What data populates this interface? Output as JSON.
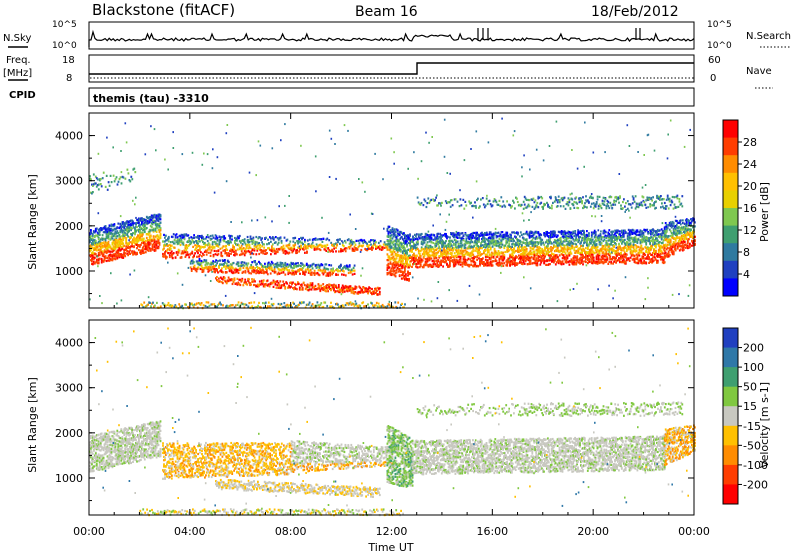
{
  "header": {
    "station": "Blackstone (fitACF)",
    "beam": "Beam 16",
    "date": "18/Feb/2012"
  },
  "top_panels": {
    "nsky_label": "N.Sky",
    "nsky_ticks": [
      "10^5",
      "10^0"
    ],
    "nsearch_label": "N.Search",
    "nsearch_ticks": [
      "10^5",
      "10^0"
    ],
    "freq_label": "Freq.",
    "freq_unit": "[MHz]",
    "freq_ticks": [
      "18",
      "8"
    ],
    "nave_label": "Nave",
    "nave_ticks": [
      "60",
      "0"
    ],
    "cpid_label": "CPID",
    "cpid_text": "themis (tau) -3310"
  },
  "chart_data": [
    {
      "type": "heatmap",
      "name": "power-panel",
      "ylabel": "Slant Range [km]",
      "yticks": [
        "4000",
        "3000",
        "2000",
        "1000"
      ],
      "ylim": [
        180,
        4500
      ],
      "xlim": [
        0,
        24
      ],
      "colorbar": {
        "label": "Power [dB]",
        "ticks": [
          "28",
          "24",
          "20",
          "16",
          "12",
          "8",
          "4"
        ],
        "colors": [
          "#ff0000",
          "#ff3d00",
          "#ff8c00",
          "#ffc000",
          "#e8d000",
          "#7fc850",
          "#3f9f70",
          "#2f7aa0",
          "#1f40c0",
          "#0000ff"
        ]
      }
    },
    {
      "type": "heatmap",
      "name": "velocity-panel",
      "ylabel": "Slant Range [km]",
      "yticks": [
        "4000",
        "3000",
        "2000",
        "1000"
      ],
      "ylim": [
        180,
        4500
      ],
      "xlim": [
        0,
        24
      ],
      "xticks": [
        "00:00",
        "04:00",
        "08:00",
        "12:00",
        "16:00",
        "20:00",
        "00:00"
      ],
      "xlabel": "Time UT",
      "colorbar": {
        "label": "Velocity [m s-1]",
        "ticks": [
          "200",
          "100",
          "50",
          "15",
          "-15",
          "-50",
          "-100",
          "-200"
        ],
        "colors": [
          "#2040c0",
          "#2f78a8",
          "#3f9f70",
          "#80c840",
          "#c8c8c0",
          "#ffc000",
          "#ff8c00",
          "#ff3d00",
          "#ff0000"
        ]
      }
    }
  ]
}
